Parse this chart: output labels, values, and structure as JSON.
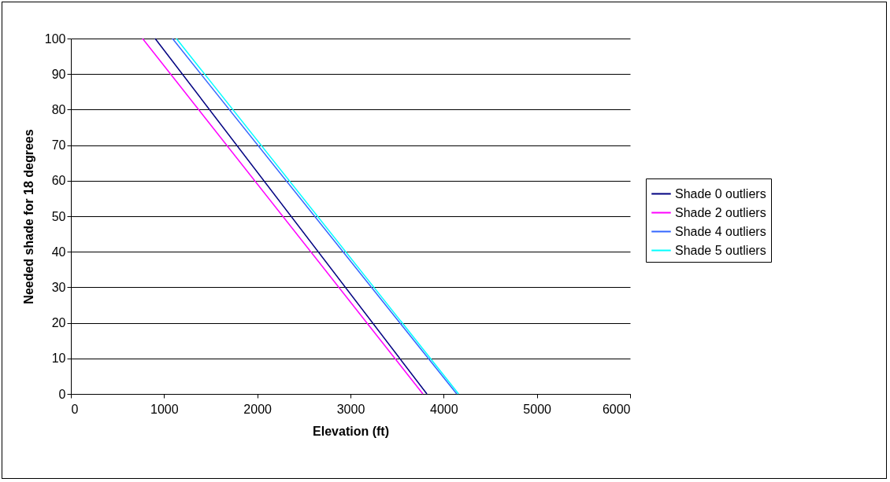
{
  "chart_data": {
    "type": "line",
    "xlabel": "Elevation (ft)",
    "ylabel": "Needed shade for 18 degrees",
    "xlim": [
      0,
      6000
    ],
    "xticks": [
      0,
      1000,
      2000,
      3000,
      4000,
      5000,
      6000
    ],
    "ylim": [
      0,
      100
    ],
    "yticks": [
      0,
      10,
      20,
      30,
      40,
      50,
      60,
      70,
      80,
      90,
      100
    ],
    "grid": "y",
    "legend": "right",
    "series": [
      {
        "name": "Shade 0 outliers",
        "color": "#000080",
        "x": [
          904,
          3820
        ],
        "values": [
          100,
          0
        ]
      },
      {
        "name": "Shade 2 outliers",
        "color": "#ff00ff",
        "x": [
          769,
          3777
        ],
        "values": [
          100,
          0
        ]
      },
      {
        "name": "Shade 4 outliers",
        "color": "#3366ff",
        "x": [
          1090,
          4140
        ],
        "values": [
          100,
          0
        ]
      },
      {
        "name": "Shade 5 outliers",
        "color": "#00ffff",
        "x": [
          1132,
          4160
        ],
        "values": [
          100,
          0
        ]
      }
    ]
  }
}
